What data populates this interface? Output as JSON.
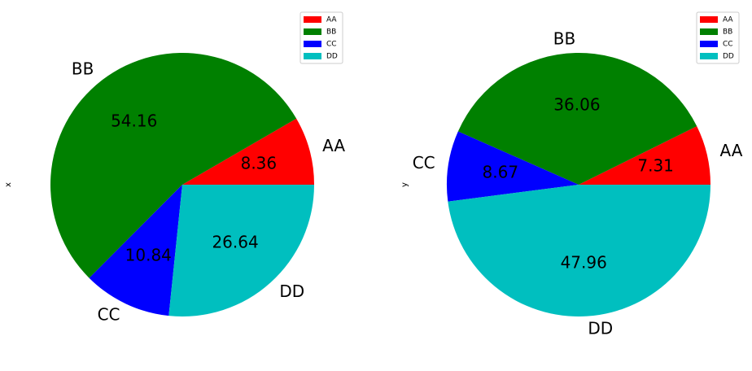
{
  "chart_data": [
    {
      "type": "pie",
      "ylabel": "x",
      "categories": [
        "AA",
        "BB",
        "CC",
        "DD"
      ],
      "values": [
        8.36,
        54.16,
        10.84,
        26.64
      ],
      "colors": [
        "#ff0000",
        "#008000",
        "#0000ff",
        "#00bfbf"
      ],
      "legend": "upper right"
    },
    {
      "type": "pie",
      "ylabel": "y",
      "categories": [
        "AA",
        "BB",
        "CC",
        "DD"
      ],
      "values": [
        7.31,
        36.06,
        8.67,
        47.96
      ],
      "colors": [
        "#ff0000",
        "#008000",
        "#0000ff",
        "#00bfbf"
      ],
      "legend": "upper right"
    }
  ]
}
